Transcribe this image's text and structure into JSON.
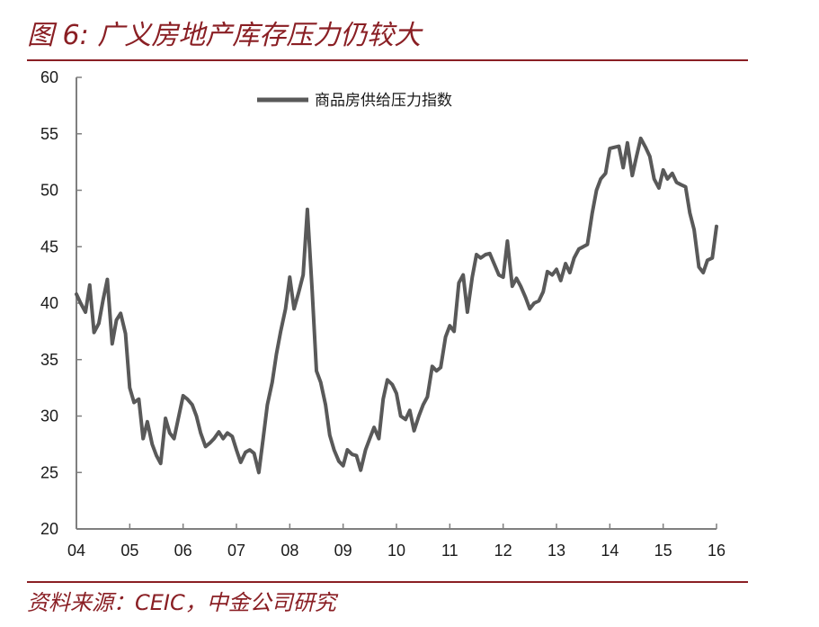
{
  "title": "图 6: 广义房地产库存压力仍较大",
  "source": "资料来源：CEIC，中金公司研究",
  "colors": {
    "accent": "#8a1f24",
    "series": "#595959",
    "axis": "#7f7f7f"
  },
  "chart_data": {
    "type": "line",
    "title": "图 6: 广义房地产库存压力仍较大",
    "xlabel": "",
    "ylabel": "",
    "ylim": [
      20,
      60
    ],
    "y_ticks": [
      "20",
      "25",
      "30",
      "35",
      "40",
      "45",
      "50",
      "55",
      "60"
    ],
    "x_range": [
      2004,
      2016
    ],
    "x_ticks": [
      "04",
      "05",
      "06",
      "07",
      "08",
      "09",
      "10",
      "11",
      "12",
      "13",
      "14",
      "15",
      "16"
    ],
    "grid": false,
    "legend": {
      "position": "top-center",
      "entries": [
        "商品房供给压力指数"
      ]
    },
    "series": [
      {
        "name": "商品房供给压力指数",
        "x": [
          2004.0,
          2004.08,
          2004.17,
          2004.25,
          2004.33,
          2004.42,
          2004.5,
          2004.58,
          2004.67,
          2004.75,
          2004.83,
          2004.92,
          2005.0,
          2005.08,
          2005.17,
          2005.25,
          2005.33,
          2005.42,
          2005.5,
          2005.58,
          2005.67,
          2005.75,
          2005.83,
          2005.92,
          2006.0,
          2006.08,
          2006.17,
          2006.25,
          2006.33,
          2006.42,
          2006.5,
          2006.58,
          2006.67,
          2006.75,
          2006.83,
          2006.92,
          2007.0,
          2007.08,
          2007.17,
          2007.25,
          2007.33,
          2007.42,
          2007.5,
          2007.58,
          2007.67,
          2007.75,
          2007.83,
          2007.92,
          2008.0,
          2008.08,
          2008.17,
          2008.25,
          2008.33,
          2008.42,
          2008.5,
          2008.58,
          2008.67,
          2008.75,
          2008.83,
          2008.92,
          2009.0,
          2009.08,
          2009.17,
          2009.25,
          2009.33,
          2009.42,
          2009.5,
          2009.58,
          2009.67,
          2009.75,
          2009.83,
          2009.92,
          2010.0,
          2010.08,
          2010.17,
          2010.25,
          2010.33,
          2010.42,
          2010.5,
          2010.58,
          2010.67,
          2010.75,
          2010.83,
          2010.92,
          2011.0,
          2011.08,
          2011.17,
          2011.25,
          2011.33,
          2011.42,
          2011.5,
          2011.58,
          2011.67,
          2011.75,
          2011.83,
          2011.92,
          2012.0,
          2012.08,
          2012.17,
          2012.25,
          2012.33,
          2012.42,
          2012.5,
          2012.58,
          2012.67,
          2012.75,
          2012.83,
          2012.92,
          2013.0,
          2013.08,
          2013.17,
          2013.25,
          2013.33,
          2013.42,
          2013.5,
          2013.58,
          2013.67,
          2013.75,
          2013.83,
          2013.92,
          2014.0,
          2014.08,
          2014.17,
          2014.25,
          2014.33,
          2014.42,
          2014.5,
          2014.58,
          2014.67,
          2014.75,
          2014.83,
          2014.92,
          2015.0,
          2015.08,
          2015.17,
          2015.25,
          2015.33,
          2015.42,
          2015.5,
          2015.58,
          2015.67,
          2015.75,
          2015.83,
          2015.92,
          2016.0
        ],
        "values": [
          40.8,
          40.0,
          39.2,
          41.6,
          37.4,
          38.2,
          40.3,
          42.1,
          36.4,
          38.5,
          39.1,
          37.3,
          32.5,
          31.2,
          31.5,
          28.0,
          29.5,
          27.5,
          26.5,
          25.8,
          29.8,
          28.5,
          28.0,
          30.0,
          31.8,
          31.5,
          31.0,
          30.0,
          28.5,
          27.3,
          27.6,
          28.0,
          28.6,
          28.0,
          28.5,
          28.2,
          27.0,
          25.9,
          26.8,
          27.0,
          26.7,
          25.0,
          28.0,
          31.0,
          33.0,
          35.5,
          37.5,
          39.5,
          42.3,
          39.5,
          41.0,
          42.5,
          48.3,
          41.0,
          34.0,
          33.0,
          31.0,
          28.3,
          27.0,
          26.0,
          25.6,
          27.0,
          26.6,
          26.5,
          25.2,
          27.0,
          28.0,
          29.0,
          28.0,
          31.5,
          33.2,
          32.8,
          32.0,
          30.0,
          29.7,
          30.5,
          28.7,
          30.0,
          31.0,
          31.7,
          34.4,
          34.0,
          34.3,
          37.0,
          38.0,
          37.5,
          41.8,
          42.5,
          39.2,
          42.3,
          44.3,
          44.0,
          44.3,
          44.4,
          43.5,
          42.5,
          42.3,
          45.5,
          41.5,
          42.2,
          41.5,
          40.5,
          39.5,
          40.0,
          40.2,
          41.0,
          42.8,
          42.5,
          43.0,
          42.0,
          43.5,
          42.7,
          44.0,
          44.8,
          45.0,
          45.2,
          48.0,
          50.0,
          51.0,
          51.5,
          53.7,
          53.8,
          53.9,
          52.0,
          54.2,
          51.3,
          53.0,
          54.6,
          53.8,
          53.0,
          51.0,
          50.2,
          51.8,
          51.0,
          51.5,
          50.7,
          50.5,
          50.3,
          48.0,
          46.5,
          43.2,
          42.7,
          43.8,
          44.0,
          46.8
        ]
      }
    ]
  }
}
